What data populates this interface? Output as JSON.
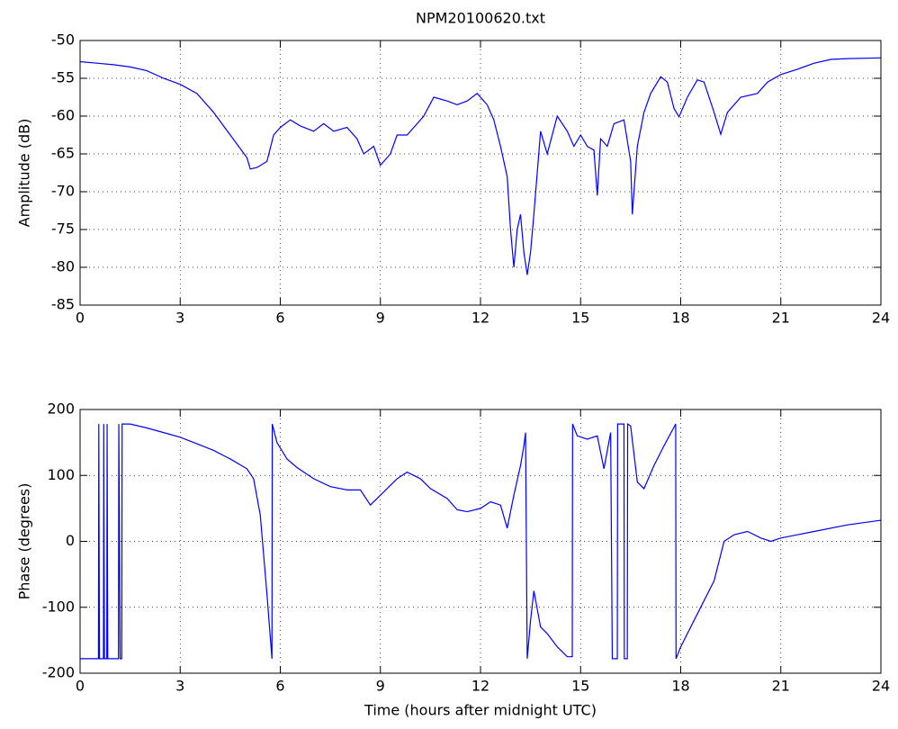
{
  "chart_data": [
    {
      "type": "line",
      "title": "NPM20100620.txt",
      "ylabel": "Amplitude (dB)",
      "xlim": [
        0,
        24
      ],
      "xticks": [
        0,
        3,
        6,
        9,
        12,
        15,
        18,
        21,
        24
      ],
      "ylim": [
        -85,
        -50
      ],
      "yticks": [
        -85,
        -80,
        -75,
        -70,
        -65,
        -60,
        -55,
        -50
      ],
      "grid": true,
      "series": [
        {
          "color": "#0000ff",
          "x": [
            0,
            0.5,
            1,
            1.5,
            2,
            2.5,
            3,
            3.5,
            4,
            4.5,
            5,
            5.1,
            5.3,
            5.6,
            5.8,
            6,
            6.3,
            6.6,
            7,
            7.3,
            7.6,
            8,
            8.3,
            8.5,
            8.8,
            9,
            9.3,
            9.5,
            9.8,
            10,
            10.3,
            10.6,
            11,
            11.3,
            11.6,
            11.9,
            12.2,
            12.4,
            12.6,
            12.8,
            12.9,
            13,
            13.1,
            13.2,
            13.3,
            13.4,
            13.5,
            13.6,
            13.8,
            14,
            14.3,
            14.6,
            14.8,
            15,
            15.2,
            15.4,
            15.5,
            15.6,
            15.8,
            16,
            16.3,
            16.5,
            16.55,
            16.7,
            16.9,
            17.1,
            17.4,
            17.6,
            17.8,
            17.95,
            18.2,
            18.5,
            18.7,
            19,
            19.2,
            19.4,
            19.8,
            20.3,
            20.6,
            21,
            21.5,
            22,
            22.5,
            23,
            24
          ],
          "values": [
            -52.8,
            -53,
            -53.2,
            -53.5,
            -54,
            -55,
            -55.8,
            -57,
            -59.5,
            -62.5,
            -65.5,
            -67,
            -66.8,
            -66,
            -62.5,
            -61.5,
            -60.5,
            -61.3,
            -62,
            -61,
            -62,
            -61.5,
            -63,
            -65,
            -64,
            -66.5,
            -65,
            -62.5,
            -62.5,
            -61.5,
            -60,
            -57.5,
            -58,
            -58.5,
            -58,
            -57,
            -58.5,
            -60.5,
            -64,
            -68,
            -75,
            -80,
            -75,
            -73,
            -78,
            -81,
            -78,
            -73,
            -62,
            -65,
            -60,
            -62,
            -64,
            -62.5,
            -64,
            -64.5,
            -70.5,
            -63,
            -64,
            -61,
            -60.5,
            -66,
            -73,
            -64,
            -59.5,
            -57,
            -54.8,
            -55.5,
            -59,
            -60.1,
            -57.5,
            -55.2,
            -55.5,
            -59.5,
            -62.4,
            -59.5,
            -57.5,
            -57,
            -55.5,
            -54.5,
            -53.8,
            -53,
            -52.5,
            -52.4,
            -52.3
          ]
        }
      ]
    },
    {
      "type": "line",
      "xlabel": "Time (hours after midnight UTC)",
      "ylabel": "Phase (degrees)",
      "xlim": [
        0,
        24
      ],
      "xticks": [
        0,
        3,
        6,
        9,
        12,
        15,
        18,
        21,
        24
      ],
      "ylim": [
        -200,
        200
      ],
      "yticks": [
        -200,
        -100,
        0,
        100,
        200
      ],
      "grid": true,
      "series": [
        {
          "color": "#0000ff",
          "x": [
            0,
            0.55,
            0.56,
            0.58,
            0.7,
            0.71,
            0.73,
            0.8,
            0.81,
            0.83,
            1.15,
            1.16,
            1.2,
            1.25,
            1.26,
            1.5,
            2,
            2.5,
            3,
            3.5,
            4,
            4.5,
            5,
            5.2,
            5.4,
            5.6,
            5.75,
            5.76,
            5.9,
            6.2,
            6.5,
            7,
            7.5,
            8,
            8.4,
            8.7,
            9,
            9.5,
            9.8,
            10.2,
            10.5,
            11,
            11.3,
            11.6,
            12,
            12.3,
            12.6,
            12.8,
            13,
            13.2,
            13.3,
            13.35,
            13.4,
            13.5,
            13.6,
            13.8,
            14,
            14.3,
            14.6,
            14.75,
            14.76,
            14.9,
            15.2,
            15.5,
            15.7,
            15.9,
            15.95,
            16.1,
            16.11,
            16.3,
            16.31,
            16.4,
            16.41,
            16.5,
            16.7,
            16.9,
            17.2,
            17.5,
            17.85,
            17.86,
            18,
            18.5,
            19,
            19.3,
            19.6,
            20,
            20.4,
            20.7,
            21,
            22,
            23,
            24
          ],
          "values": [
            -178,
            -178,
            178,
            -178,
            -178,
            178,
            -178,
            -178,
            178,
            -178,
            -178,
            178,
            -178,
            -178,
            178,
            178,
            172,
            165,
            158,
            148,
            138,
            125,
            110,
            95,
            40,
            -80,
            -178,
            178,
            150,
            125,
            112,
            95,
            83,
            78,
            78,
            55,
            70,
            95,
            105,
            95,
            80,
            65,
            48,
            45,
            50,
            60,
            55,
            20,
            70,
            115,
            145,
            165,
            -178,
            -120,
            -75,
            -130,
            -140,
            -160,
            -175,
            -175,
            178,
            160,
            155,
            160,
            110,
            165,
            -178,
            -178,
            178,
            178,
            -178,
            -178,
            178,
            175,
            90,
            80,
            115,
            145,
            178,
            -178,
            -160,
            -110,
            -60,
            0,
            10,
            15,
            5,
            0,
            5,
            15,
            25,
            32
          ]
        }
      ]
    }
  ]
}
